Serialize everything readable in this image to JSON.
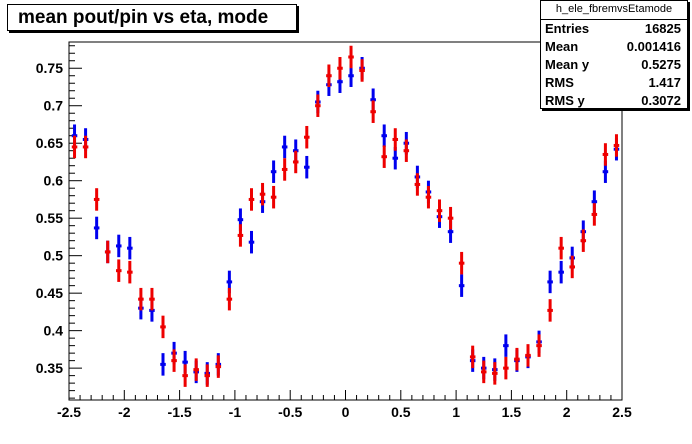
{
  "title": "mean pout/pin vs eta, mode",
  "stats": {
    "name": "h_ele_fbremvsEtamode",
    "rows": [
      {
        "k": "Entries",
        "v": "16825"
      },
      {
        "k": "Mean",
        "v": "0.001416"
      },
      {
        "k": "Mean y",
        "v": "0.5275"
      },
      {
        "k": "RMS",
        "v": "1.417"
      },
      {
        "k": "RMS y",
        "v": "0.3072"
      }
    ]
  },
  "colors": {
    "blue": "#0000ee",
    "red": "#ee0000"
  },
  "chart_data": {
    "type": "scatter",
    "xlim": [
      -2.5,
      2.5
    ],
    "ylim": [
      0.3075,
      0.785
    ],
    "xticks": [
      "-2.5",
      "-2",
      "-1.5",
      "-1",
      "-0.5",
      "0",
      "0.5",
      "1",
      "1.5",
      "2",
      "2.5"
    ],
    "yticks": [
      "0.35",
      "0.4",
      "0.45",
      "0.5",
      "0.55",
      "0.6",
      "0.65",
      "0.7",
      "0.75"
    ],
    "bin_half_width": 0.025,
    "series": [
      {
        "color": "blue",
        "x": [
          -2.45,
          -2.35,
          -2.25,
          -2.15,
          -2.05,
          -1.95,
          -1.85,
          -1.75,
          -1.65,
          -1.55,
          -1.45,
          -1.35,
          -1.25,
          -1.15,
          -1.05,
          -0.95,
          -0.85,
          -0.75,
          -0.65,
          -0.55,
          -0.45,
          -0.35,
          -0.25,
          -0.15,
          -0.05,
          0.05,
          0.15,
          0.25,
          0.35,
          0.45,
          0.55,
          0.65,
          0.75,
          0.85,
          0.95,
          1.05,
          1.15,
          1.25,
          1.35,
          1.45,
          1.55,
          1.65,
          1.75,
          1.85,
          1.95,
          2.05,
          2.15,
          2.25,
          2.35,
          2.45
        ],
        "y": [
          0.66,
          0.655,
          0.537,
          0.505,
          0.513,
          0.51,
          0.43,
          0.427,
          0.355,
          0.37,
          0.358,
          0.345,
          0.343,
          0.355,
          0.465,
          0.548,
          0.518,
          0.572,
          0.612,
          0.645,
          0.64,
          0.618,
          0.705,
          0.728,
          0.732,
          0.74,
          0.75,
          0.708,
          0.66,
          0.63,
          0.65,
          0.605,
          0.585,
          0.552,
          0.532,
          0.46,
          0.36,
          0.35,
          0.348,
          0.38,
          0.36,
          0.365,
          0.385,
          0.465,
          0.478,
          0.497,
          0.532,
          0.572,
          0.612,
          0.642
        ],
        "err": [
          0.015,
          0.015,
          0.015,
          0.015,
          0.015,
          0.015,
          0.015,
          0.015,
          0.015,
          0.015,
          0.015,
          0.015,
          0.015,
          0.015,
          0.015,
          0.015,
          0.015,
          0.015,
          0.015,
          0.015,
          0.015,
          0.015,
          0.015,
          0.015,
          0.015,
          0.015,
          0.015,
          0.015,
          0.015,
          0.015,
          0.015,
          0.015,
          0.015,
          0.015,
          0.015,
          0.015,
          0.015,
          0.015,
          0.015,
          0.015,
          0.015,
          0.015,
          0.015,
          0.015,
          0.015,
          0.015,
          0.015,
          0.015,
          0.015,
          0.015
        ]
      },
      {
        "color": "red",
        "x": [
          -2.45,
          -2.35,
          -2.25,
          -2.15,
          -2.05,
          -1.95,
          -1.85,
          -1.75,
          -1.65,
          -1.55,
          -1.45,
          -1.35,
          -1.25,
          -1.15,
          -1.05,
          -0.95,
          -0.85,
          -0.75,
          -0.65,
          -0.55,
          -0.45,
          -0.35,
          -0.25,
          -0.15,
          -0.05,
          0.05,
          0.15,
          0.25,
          0.35,
          0.45,
          0.55,
          0.65,
          0.75,
          0.85,
          0.95,
          1.05,
          1.15,
          1.25,
          1.35,
          1.45,
          1.55,
          1.65,
          1.75,
          1.85,
          1.95,
          2.05,
          2.15,
          2.25,
          2.35,
          2.45
        ],
        "y": [
          0.645,
          0.645,
          0.575,
          0.505,
          0.48,
          0.478,
          0.442,
          0.442,
          0.405,
          0.36,
          0.34,
          0.348,
          0.34,
          0.352,
          0.442,
          0.527,
          0.575,
          0.582,
          0.578,
          0.615,
          0.625,
          0.658,
          0.7,
          0.74,
          0.75,
          0.765,
          0.747,
          0.692,
          0.632,
          0.655,
          0.64,
          0.595,
          0.578,
          0.56,
          0.55,
          0.49,
          0.365,
          0.345,
          0.343,
          0.35,
          0.362,
          0.367,
          0.38,
          0.427,
          0.51,
          0.485,
          0.52,
          0.555,
          0.635,
          0.647
        ],
        "err": [
          0.015,
          0.015,
          0.015,
          0.015,
          0.015,
          0.015,
          0.015,
          0.015,
          0.015,
          0.015,
          0.015,
          0.015,
          0.015,
          0.015,
          0.015,
          0.015,
          0.015,
          0.015,
          0.015,
          0.015,
          0.015,
          0.015,
          0.015,
          0.015,
          0.015,
          0.015,
          0.015,
          0.015,
          0.015,
          0.015,
          0.015,
          0.015,
          0.015,
          0.015,
          0.015,
          0.015,
          0.015,
          0.015,
          0.015,
          0.015,
          0.015,
          0.015,
          0.015,
          0.015,
          0.015,
          0.015,
          0.015,
          0.015,
          0.015,
          0.015
        ]
      }
    ]
  }
}
